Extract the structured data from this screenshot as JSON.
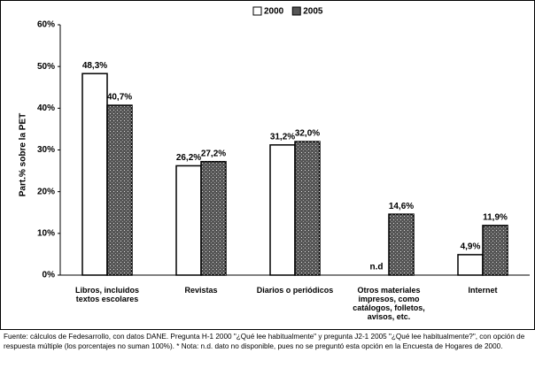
{
  "chart_data": {
    "type": "bar",
    "y_label": "Part.% sobre la PET",
    "categories": [
      "Libros, incluidos textos escolares",
      "Revistas",
      "Diarios o periódicos",
      "Otros materiales impresos, como catálogos, folletos, avisos, etc.",
      "Internet"
    ],
    "series": [
      {
        "name": "2000",
        "color": "#ffffff",
        "values": [
          48.3,
          26.2,
          31.2,
          null,
          4.9
        ],
        "value_labels": [
          "48,3%",
          "26,2%",
          "31,2%",
          "n.d",
          "4,9%"
        ]
      },
      {
        "name": "2005",
        "color": "#555555",
        "values": [
          40.7,
          27.2,
          32.0,
          14.6,
          11.9
        ],
        "value_labels": [
          "40,7%",
          "27,2%",
          "32,0%",
          "14,6%",
          "11,9%"
        ]
      }
    ],
    "ylim": [
      0,
      60
    ],
    "yticks": [
      {
        "value": 0,
        "label": "0%"
      },
      {
        "value": 10,
        "label": "10%"
      },
      {
        "value": 20,
        "label": "20%"
      },
      {
        "value": 30,
        "label": "30%"
      },
      {
        "value": 40,
        "label": "40%"
      },
      {
        "value": 50,
        "label": "50%"
      },
      {
        "value": 60,
        "label": "60%"
      }
    ],
    "legend": "top",
    "note": "Fuente: cálculos de Fedesarrollo, con datos DANE. Pregunta H-1 2000 \"¿Qué lee habitualmente\" y pregunta J2-1 2005 \"¿Qué lee habitualmente?\", con opción de respuesta múltiple (los porcentajes no suman 100%). * Nota: n.d. dato no disponible, pues no se preguntó esta opción en la Encuesta de Hogares de 2000."
  }
}
